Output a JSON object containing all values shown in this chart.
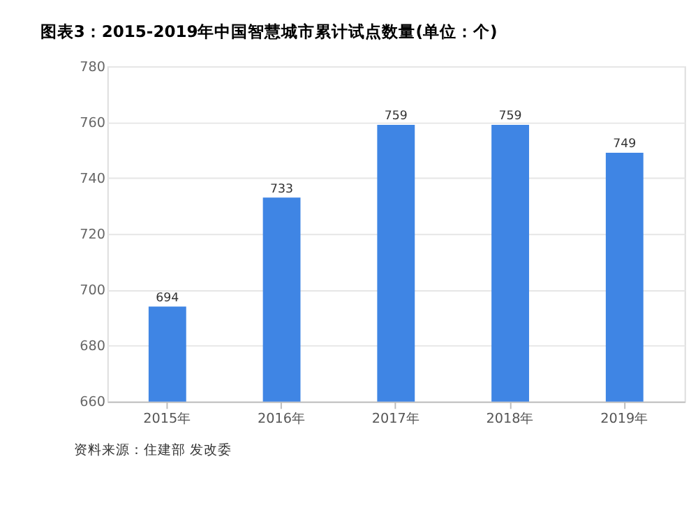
{
  "chart_data": {
    "type": "bar",
    "title": "图表3：2015-2019年中国智慧城市累计试点数量(单位：个)",
    "categories": [
      "2015年",
      "2016年",
      "2017年",
      "2018年",
      "2019年"
    ],
    "values": [
      694,
      733,
      759,
      759,
      749
    ],
    "color": "#3f85e4",
    "ylim": [
      660,
      780
    ],
    "yticks": [
      660,
      680,
      700,
      720,
      740,
      760,
      780
    ],
    "grid": "y",
    "data_labels": true,
    "annotations": [
      "资料来源：住建部 发改委"
    ]
  }
}
